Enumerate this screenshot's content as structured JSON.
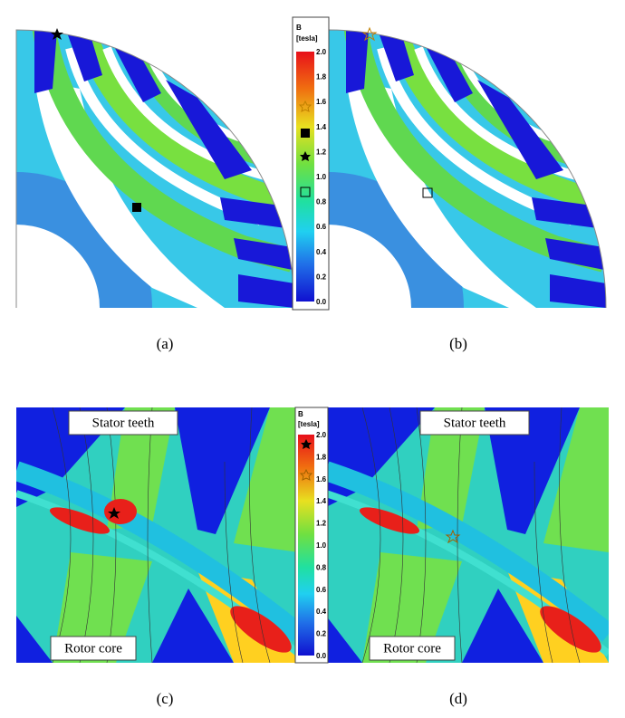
{
  "colorbars": [
    {
      "title": "B",
      "unit": "[tesla]",
      "ticks": [
        "2.0",
        "1.8",
        "1.6",
        "1.4",
        "1.2",
        "1.0",
        "0.8",
        "0.6",
        "0.4",
        "0.2",
        "0.0"
      ]
    },
    {
      "title": "B",
      "unit": "[tesla]",
      "ticks": [
        "2.0",
        "1.8",
        "1.6",
        "1.4",
        "1.2",
        "1.0",
        "0.8",
        "0.6",
        "0.4",
        "0.2",
        "0.0"
      ]
    }
  ],
  "panels": [
    {
      "caption": "(a)"
    },
    {
      "caption": "(b)"
    },
    {
      "caption": "(c)",
      "labels": [
        "Stator teeth",
        "Rotor core"
      ]
    },
    {
      "caption": "(d)",
      "labels": [
        "Stator teeth",
        "Rotor core"
      ]
    }
  ]
}
